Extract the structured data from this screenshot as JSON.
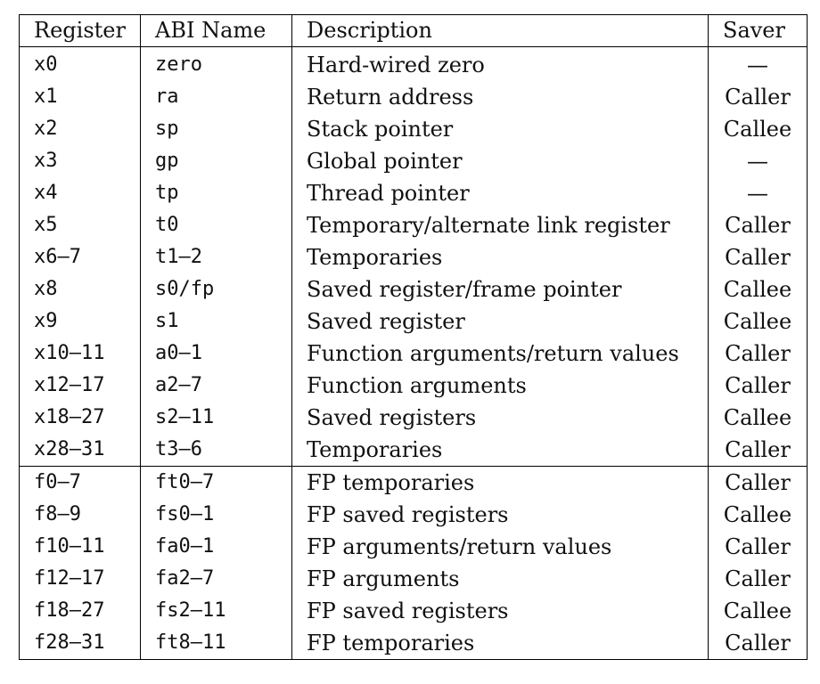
{
  "table": {
    "headers": {
      "register": "Register",
      "abi_name": "ABI Name",
      "description": "Description",
      "saver": "Saver"
    },
    "integer_rows": [
      {
        "register": "x0",
        "abi": "zero",
        "description": "Hard-wired zero",
        "saver": "—"
      },
      {
        "register": "x1",
        "abi": "ra",
        "description": "Return address",
        "saver": "Caller"
      },
      {
        "register": "x2",
        "abi": "sp",
        "description": "Stack pointer",
        "saver": "Callee"
      },
      {
        "register": "x3",
        "abi": "gp",
        "description": "Global pointer",
        "saver": "—"
      },
      {
        "register": "x4",
        "abi": "tp",
        "description": "Thread pointer",
        "saver": "—"
      },
      {
        "register": "x5",
        "abi": "t0",
        "description": "Temporary/alternate link register",
        "saver": "Caller"
      },
      {
        "register": "x6–7",
        "abi": "t1–2",
        "description": "Temporaries",
        "saver": "Caller"
      },
      {
        "register": "x8",
        "abi": "s0/fp",
        "description": "Saved register/frame pointer",
        "saver": "Callee"
      },
      {
        "register": "x9",
        "abi": "s1",
        "description": "Saved register",
        "saver": "Callee"
      },
      {
        "register": "x10–11",
        "abi": "a0–1",
        "description": "Function arguments/return values",
        "saver": "Caller"
      },
      {
        "register": "x12–17",
        "abi": "a2–7",
        "description": "Function arguments",
        "saver": "Caller"
      },
      {
        "register": "x18–27",
        "abi": "s2–11",
        "description": "Saved registers",
        "saver": "Callee"
      },
      {
        "register": "x28–31",
        "abi": "t3–6",
        "description": "Temporaries",
        "saver": "Caller"
      }
    ],
    "fp_rows": [
      {
        "register": "f0–7",
        "abi": "ft0–7",
        "description": "FP temporaries",
        "saver": "Caller"
      },
      {
        "register": "f8–9",
        "abi": "fs0–1",
        "description": "FP saved registers",
        "saver": "Callee"
      },
      {
        "register": "f10–11",
        "abi": "fa0–1",
        "description": "FP arguments/return values",
        "saver": "Caller"
      },
      {
        "register": "f12–17",
        "abi": "fa2–7",
        "description": "FP arguments",
        "saver": "Caller"
      },
      {
        "register": "f18–27",
        "abi": "fs2–11",
        "description": "FP saved registers",
        "saver": "Callee"
      },
      {
        "register": "f28–31",
        "abi": "ft8–11",
        "description": "FP temporaries",
        "saver": "Caller"
      }
    ]
  }
}
